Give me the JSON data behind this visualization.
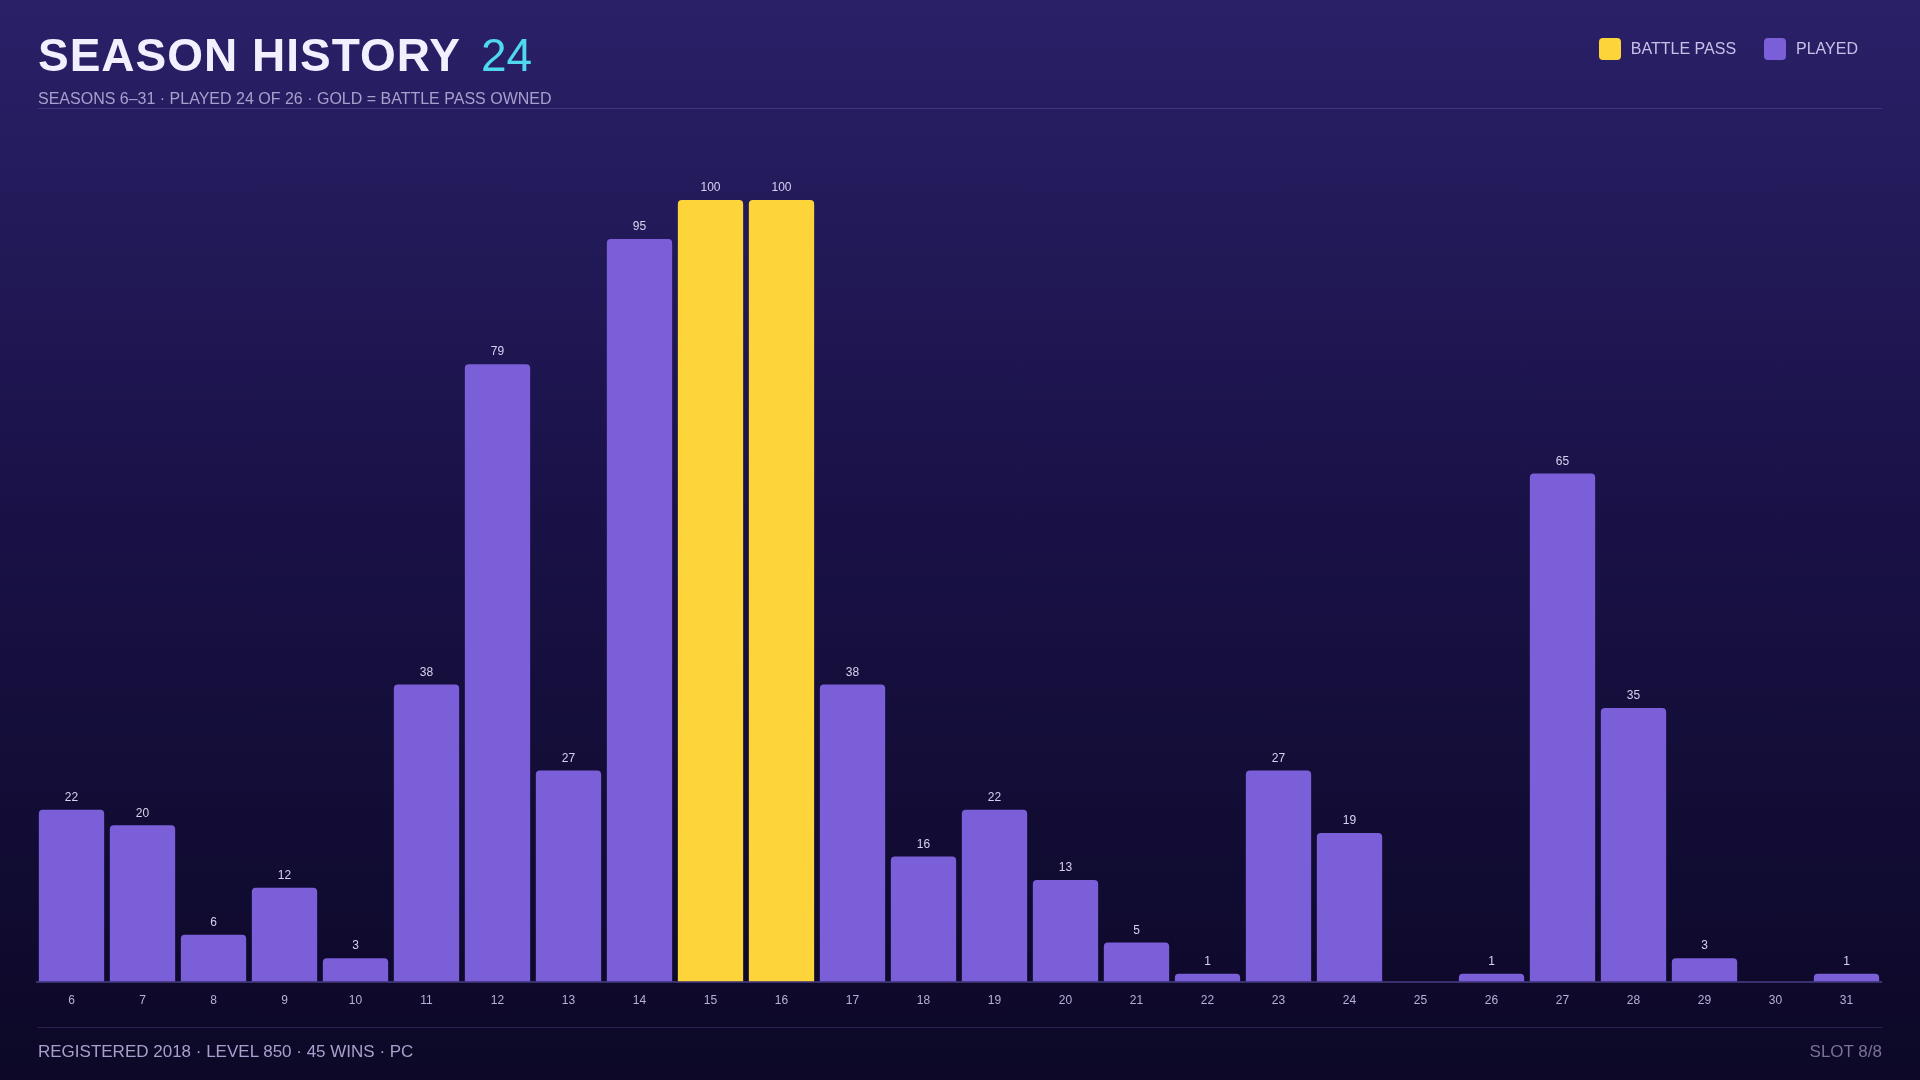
{
  "chart_data": {
    "type": "bar",
    "title": "SEASON HISTORY",
    "subtitle": "SEASONS 6–31 · PLAYED 24 OF 26 · GOLD = BATTLE PASS OWNED",
    "annotations": [
      "24",
      "REGISTERED 2018 · LEVEL 850 · 45 WINS · PC",
      "SLOT 8/8"
    ],
    "categories": [
      "6",
      "7",
      "8",
      "9",
      "10",
      "11",
      "12",
      "13",
      "14",
      "15",
      "16",
      "17",
      "18",
      "19",
      "20",
      "21",
      "22",
      "23",
      "24",
      "25",
      "26",
      "27",
      "28",
      "29",
      "30",
      "31"
    ],
    "stacked": true,
    "legend": "top right",
    "grid": false,
    "series": [
      {
        "name": "BATTLE PASS",
        "color": "#fdd43a",
        "values": [
          null,
          null,
          null,
          null,
          null,
          null,
          null,
          null,
          null,
          100,
          100,
          null,
          null,
          null,
          null,
          null,
          null,
          null,
          null,
          null,
          null,
          null,
          null,
          null,
          null,
          null
        ],
        "value_labels": [
          null,
          null,
          null,
          null,
          null,
          null,
          null,
          null,
          null,
          "100",
          "100",
          null,
          null,
          null,
          null,
          null,
          null,
          null,
          null,
          null,
          null,
          null,
          null,
          null,
          null,
          null
        ]
      },
      {
        "name": "PLAYED",
        "color": "#7b5fd9",
        "values": [
          22,
          20,
          6,
          12,
          3,
          38,
          79,
          27,
          95,
          null,
          null,
          38,
          16,
          22,
          13,
          5,
          1,
          27,
          19,
          null,
          1,
          65,
          35,
          3,
          null,
          1
        ],
        "value_labels": [
          "22",
          "20",
          "6",
          "12",
          "3",
          "38",
          "79",
          "27",
          "95",
          null,
          null,
          "38",
          "16",
          "22",
          "13",
          "5",
          "1",
          "27",
          "19",
          null,
          "1",
          "65",
          "35",
          "3",
          null,
          "1"
        ]
      }
    ]
  }
}
